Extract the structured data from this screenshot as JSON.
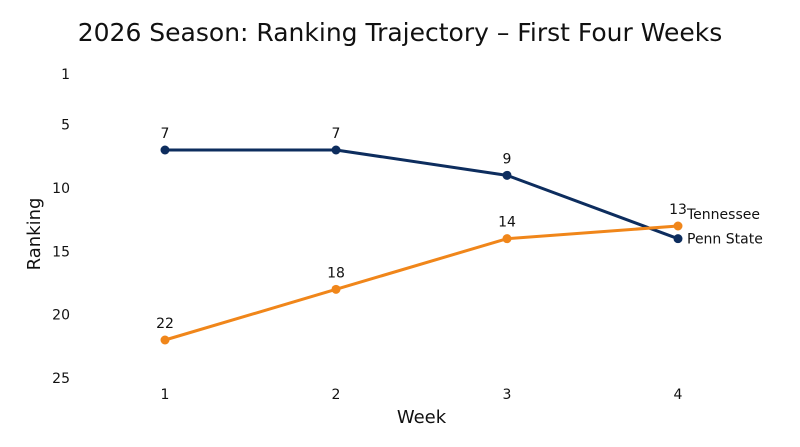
{
  "chart_data": {
    "type": "line",
    "title": "2026 Season: Ranking Trajectory – First Four Weeks",
    "xlabel": "Week",
    "ylabel": "Ranking",
    "x": [
      1,
      2,
      3,
      4
    ],
    "x_ticks": [
      "1",
      "2",
      "3",
      "4"
    ],
    "y_ticks": [
      "1",
      "5",
      "10",
      "15",
      "20",
      "25"
    ],
    "ylim": [
      1,
      25
    ],
    "y_inverted": true,
    "grid": false,
    "legend": "end-of-line labels",
    "series": [
      {
        "name": "Penn State",
        "values": [
          7,
          7,
          9,
          14
        ],
        "color": "#0d2d5e",
        "point_labels": [
          "7",
          "7",
          "9",
          ""
        ]
      },
      {
        "name": "Tennessee",
        "values": [
          22,
          18,
          14,
          13
        ],
        "color": "#f0861a",
        "point_labels": [
          "22",
          "18",
          "14",
          "13"
        ]
      }
    ]
  }
}
